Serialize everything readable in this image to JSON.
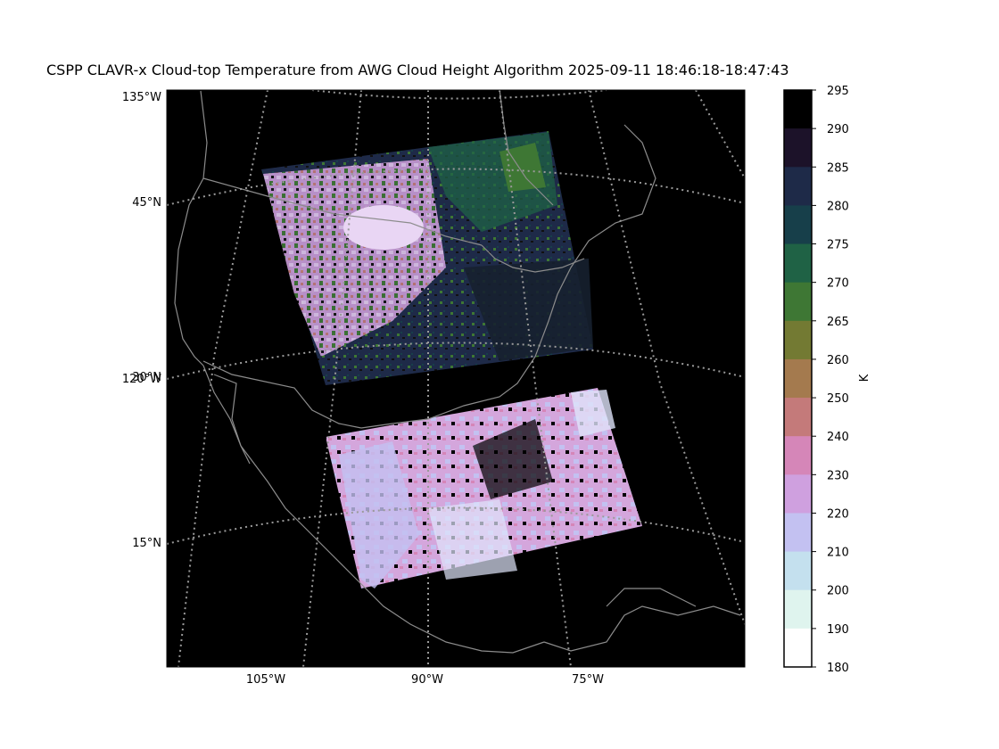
{
  "title": "CSPP CLAVR-x Cloud-top Temperature from AWG Cloud Height Algorithm 2025-09-11 18:46:18-18:47:43",
  "map": {
    "lat_labels_left": [
      "135°W",
      "45°N",
      "120°W",
      "30°N",
      "15°N"
    ],
    "lon_labels_bottom": [
      "105°W",
      "90°W",
      "75°W"
    ],
    "background": "#000000",
    "coast_color": "#8c8c8c",
    "grid_color": "#9a9a9a"
  },
  "colorbar": {
    "unit_label": "K",
    "ticks": [
      "295",
      "290",
      "285",
      "280",
      "275",
      "270",
      "265",
      "260",
      "250",
      "240",
      "230",
      "220",
      "210",
      "200",
      "190",
      "180"
    ],
    "colors": [
      "#000000",
      "#1c1229",
      "#1e2a48",
      "#173f4a",
      "#1f6245",
      "#3e7734",
      "#737a33",
      "#a47a4e",
      "#c47a7a",
      "#d586b8",
      "#cfa0df",
      "#c3c1f1",
      "#c4e0ee",
      "#dff4ee",
      "#ffffff"
    ]
  }
}
